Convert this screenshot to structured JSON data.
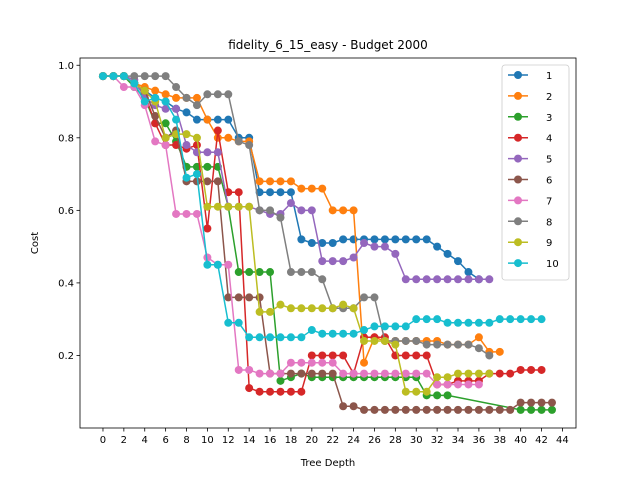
{
  "chart_data": {
    "type": "line",
    "title": "fidelity_6_15_easy - Budget  2000",
    "xlabel": "Tree Depth",
    "ylabel": "Cost",
    "xlim": [
      -2.2,
      45.3
    ],
    "ylim": [
      0.0,
      1.02
    ],
    "x_ticks": [
      0,
      2,
      4,
      6,
      8,
      10,
      12,
      14,
      16,
      18,
      20,
      22,
      24,
      26,
      28,
      30,
      32,
      34,
      36,
      38,
      40,
      42,
      44
    ],
    "x_tick_labels": [
      "0",
      "2",
      "4",
      "6",
      "8",
      "10",
      "12",
      "14",
      "16",
      "18",
      "20",
      "22",
      "24",
      "26",
      "28",
      "30",
      "32",
      "34",
      "36",
      "38",
      "40",
      "42",
      "44"
    ],
    "y_ticks": [
      0.2,
      0.4,
      0.6,
      0.8,
      1.0
    ],
    "y_tick_labels": [
      "0.2",
      "0.4",
      "0.6",
      "0.8",
      "1.0"
    ],
    "legend_position": "top-right",
    "series": [
      {
        "name": "1",
        "color": "#1f77b4",
        "x": [
          0,
          1,
          2,
          3,
          4,
          5,
          6,
          7,
          8,
          9,
          10,
          11,
          12,
          13,
          14,
          15,
          16,
          17,
          18,
          19,
          20,
          21,
          22,
          23,
          24,
          25,
          26,
          27,
          28,
          29,
          30,
          31,
          32,
          33,
          34,
          35,
          36
        ],
        "y": [
          0.97,
          0.97,
          0.97,
          0.95,
          0.93,
          0.91,
          0.9,
          0.88,
          0.87,
          0.85,
          0.85,
          0.85,
          0.85,
          0.8,
          0.8,
          0.65,
          0.65,
          0.65,
          0.65,
          0.52,
          0.51,
          0.51,
          0.51,
          0.52,
          0.52,
          0.52,
          0.52,
          0.52,
          0.52,
          0.52,
          0.52,
          0.52,
          0.5,
          0.48,
          0.46,
          0.43,
          0.41
        ]
      },
      {
        "name": "2",
        "color": "#ff7f0e",
        "x": [
          0,
          1,
          2,
          3,
          4,
          5,
          6,
          7,
          8,
          9,
          10,
          11,
          12,
          13,
          14,
          15,
          16,
          17,
          18,
          19,
          20,
          21,
          22,
          23,
          24,
          25,
          26,
          27,
          28,
          29,
          30,
          31,
          32,
          33,
          34,
          35,
          36,
          37,
          38
        ],
        "y": [
          0.97,
          0.97,
          0.97,
          0.95,
          0.94,
          0.93,
          0.92,
          0.91,
          0.91,
          0.91,
          0.85,
          0.8,
          0.8,
          0.79,
          0.79,
          0.68,
          0.68,
          0.68,
          0.68,
          0.66,
          0.66,
          0.66,
          0.6,
          0.6,
          0.6,
          0.18,
          0.25,
          0.24,
          0.24,
          0.24,
          0.24,
          0.24,
          0.24,
          0.23,
          0.23,
          0.23,
          0.25,
          0.21,
          0.21
        ]
      },
      {
        "name": "3",
        "color": "#2ca02c",
        "x": [
          0,
          1,
          2,
          3,
          4,
          5,
          6,
          7,
          8,
          9,
          10,
          11,
          12,
          13,
          14,
          15,
          16,
          17,
          18,
          19,
          20,
          21,
          22,
          23,
          24,
          25,
          26,
          27,
          28,
          29,
          30,
          31,
          32,
          33,
          40,
          41,
          42,
          43
        ],
        "y": [
          0.97,
          0.97,
          0.97,
          0.94,
          0.91,
          0.84,
          0.84,
          0.79,
          0.72,
          0.72,
          0.72,
          0.72,
          0.61,
          0.43,
          0.43,
          0.43,
          0.43,
          0.13,
          0.14,
          0.15,
          0.14,
          0.14,
          0.14,
          0.14,
          0.14,
          0.14,
          0.14,
          0.14,
          0.14,
          0.14,
          0.14,
          0.09,
          0.09,
          0.09,
          0.05,
          0.05,
          0.05,
          0.05
        ]
      },
      {
        "name": "4",
        "color": "#d62728",
        "x": [
          0,
          1,
          2,
          3,
          4,
          5,
          6,
          7,
          8,
          9,
          10,
          11,
          12,
          13,
          14,
          15,
          16,
          17,
          18,
          19,
          20,
          21,
          22,
          23,
          24,
          25,
          26,
          27,
          28,
          29,
          30,
          31,
          32,
          33,
          34,
          35,
          36,
          37,
          38,
          39,
          40,
          41,
          42
        ],
        "y": [
          0.97,
          0.97,
          0.97,
          0.95,
          0.92,
          0.84,
          0.78,
          0.78,
          0.77,
          0.78,
          0.55,
          0.82,
          0.65,
          0.65,
          0.11,
          0.1,
          0.1,
          0.1,
          0.1,
          0.1,
          0.2,
          0.2,
          0.2,
          0.2,
          0.15,
          0.25,
          0.25,
          0.25,
          0.2,
          0.2,
          0.2,
          0.2,
          0.12,
          0.12,
          0.13,
          0.13,
          0.13,
          0.15,
          0.15,
          0.15,
          0.16,
          0.16,
          0.16
        ]
      },
      {
        "name": "5",
        "color": "#9467bd",
        "x": [
          0,
          1,
          2,
          3,
          4,
          5,
          6,
          7,
          8,
          9,
          10,
          11,
          12,
          13,
          14,
          15,
          16,
          17,
          18,
          19,
          20,
          21,
          22,
          23,
          24,
          25,
          26,
          27,
          28,
          29,
          30,
          31,
          32,
          33,
          34,
          35,
          36,
          37
        ],
        "y": [
          0.97,
          0.97,
          0.97,
          0.96,
          0.91,
          0.89,
          0.88,
          0.88,
          0.78,
          0.76,
          0.76,
          0.76,
          0.61,
          0.61,
          0.61,
          0.6,
          0.59,
          0.59,
          0.62,
          0.6,
          0.6,
          0.46,
          0.46,
          0.46,
          0.47,
          0.51,
          0.5,
          0.5,
          0.48,
          0.41,
          0.41,
          0.41,
          0.41,
          0.41,
          0.41,
          0.41,
          0.41,
          0.41
        ]
      },
      {
        "name": "6",
        "color": "#8c564b",
        "x": [
          0,
          1,
          2,
          3,
          4,
          5,
          6,
          7,
          8,
          9,
          10,
          11,
          12,
          13,
          14,
          15,
          16,
          17,
          18,
          19,
          20,
          21,
          22,
          23,
          24,
          25,
          26,
          27,
          28,
          29,
          30,
          31,
          32,
          33,
          34,
          35,
          36,
          37,
          38,
          39,
          40,
          41,
          42,
          43
        ],
        "y": [
          0.97,
          0.97,
          0.97,
          0.95,
          0.93,
          0.86,
          0.8,
          0.82,
          0.68,
          0.68,
          0.68,
          0.68,
          0.36,
          0.36,
          0.36,
          0.36,
          0.15,
          0.15,
          0.15,
          0.15,
          0.15,
          0.15,
          0.15,
          0.06,
          0.06,
          0.05,
          0.05,
          0.05,
          0.05,
          0.05,
          0.05,
          0.05,
          0.05,
          0.05,
          0.05,
          0.05,
          0.05,
          0.05,
          0.05,
          0.05,
          0.07,
          0.07,
          0.07,
          0.07
        ]
      },
      {
        "name": "7",
        "color": "#e377c2",
        "x": [
          0,
          1,
          2,
          3,
          4,
          5,
          6,
          7,
          8,
          9,
          10,
          11,
          12,
          13,
          14,
          15,
          16,
          17,
          18,
          19,
          20,
          21,
          22,
          23,
          24,
          25,
          26,
          27,
          28,
          29,
          30,
          31,
          32,
          33,
          34,
          35,
          36
        ],
        "y": [
          0.97,
          0.97,
          0.94,
          0.94,
          0.89,
          0.79,
          0.78,
          0.59,
          0.59,
          0.59,
          0.47,
          0.45,
          0.45,
          0.16,
          0.16,
          0.15,
          0.15,
          0.15,
          0.18,
          0.18,
          0.18,
          0.18,
          0.18,
          0.15,
          0.15,
          0.15,
          0.15,
          0.15,
          0.15,
          0.15,
          0.15,
          0.15,
          0.12,
          0.12,
          0.12,
          0.12,
          0.12
        ]
      },
      {
        "name": "8",
        "color": "#7f7f7f",
        "x": [
          0,
          1,
          2,
          3,
          4,
          5,
          6,
          7,
          8,
          9,
          10,
          11,
          12,
          13,
          14,
          15,
          16,
          17,
          18,
          19,
          20,
          21,
          22,
          23,
          24,
          25,
          26,
          27,
          28,
          29,
          30,
          31,
          32,
          33,
          34,
          35,
          36,
          37
        ],
        "y": [
          0.97,
          0.97,
          0.97,
          0.97,
          0.97,
          0.97,
          0.97,
          0.94,
          0.91,
          0.89,
          0.92,
          0.92,
          0.92,
          0.79,
          0.78,
          0.6,
          0.6,
          0.58,
          0.43,
          0.43,
          0.43,
          0.41,
          0.33,
          0.33,
          0.33,
          0.36,
          0.36,
          0.24,
          0.24,
          0.24,
          0.24,
          0.23,
          0.23,
          0.23,
          0.23,
          0.23,
          0.22,
          0.2
        ]
      },
      {
        "name": "9",
        "color": "#bcbd22",
        "x": [
          0,
          1,
          2,
          3,
          4,
          5,
          6,
          7,
          8,
          9,
          10,
          11,
          12,
          13,
          14,
          15,
          16,
          17,
          18,
          19,
          20,
          21,
          22,
          23,
          24,
          25,
          26,
          27,
          28,
          29,
          30,
          31,
          32,
          33,
          34,
          35,
          36,
          37
        ],
        "y": [
          0.97,
          0.97,
          0.97,
          0.95,
          0.93,
          0.9,
          0.8,
          0.81,
          0.81,
          0.8,
          0.61,
          0.61,
          0.61,
          0.61,
          0.61,
          0.32,
          0.32,
          0.34,
          0.33,
          0.33,
          0.33,
          0.33,
          0.33,
          0.34,
          0.33,
          0.24,
          0.24,
          0.24,
          0.23,
          0.1,
          0.1,
          0.1,
          0.14,
          0.14,
          0.15,
          0.15,
          0.15,
          0.15
        ]
      },
      {
        "name": "10",
        "color": "#17becf",
        "x": [
          0,
          1,
          2,
          3,
          4,
          5,
          6,
          7,
          8,
          9,
          10,
          11,
          12,
          13,
          14,
          15,
          16,
          17,
          18,
          19,
          20,
          21,
          22,
          23,
          24,
          25,
          26,
          27,
          28,
          29,
          30,
          31,
          32,
          33,
          34,
          35,
          36,
          37,
          38,
          39,
          40,
          41,
          42
        ],
        "y": [
          0.97,
          0.97,
          0.97,
          0.95,
          0.9,
          0.91,
          0.9,
          0.85,
          0.69,
          0.7,
          0.45,
          0.45,
          0.29,
          0.29,
          0.25,
          0.25,
          0.25,
          0.25,
          0.25,
          0.25,
          0.27,
          0.26,
          0.26,
          0.26,
          0.26,
          0.27,
          0.28,
          0.28,
          0.28,
          0.28,
          0.3,
          0.3,
          0.3,
          0.29,
          0.29,
          0.29,
          0.29,
          0.29,
          0.3,
          0.3,
          0.3,
          0.3,
          0.3
        ]
      }
    ]
  }
}
